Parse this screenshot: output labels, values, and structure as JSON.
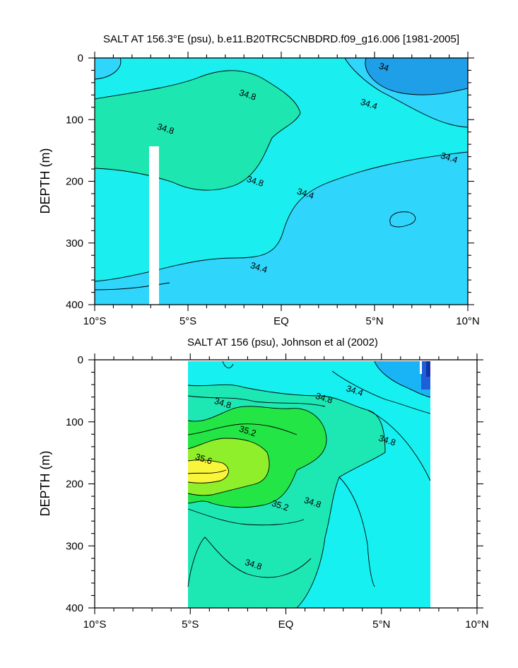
{
  "chart_data": [
    {
      "type": "contour",
      "title": "SALT AT 156.3°E (psu), b.e11.B20TRC5CNBDRD.f09_g16.006 [1981-2005]",
      "ylabel": "DEPTH (m)",
      "xlabel": "",
      "x_ticks": [
        "10°S",
        "5°S",
        "EQ",
        "5°N",
        "10°N"
      ],
      "x_range": [
        -10,
        10
      ],
      "y_ticks": [
        "0",
        "100",
        "200",
        "300",
        "400"
      ],
      "y_range": [
        0,
        400
      ],
      "y_reversed": true,
      "contour_labels": [
        {
          "text": "34",
          "x": 5.5,
          "y": 15
        },
        {
          "text": "34.4",
          "x": 4.7,
          "y": 75
        },
        {
          "text": "34.8",
          "x": -1.8,
          "y": 60
        },
        {
          "text": "34.8",
          "x": -6.2,
          "y": 115
        },
        {
          "text": "34.8",
          "x": -1.4,
          "y": 200
        },
        {
          "text": "34.4",
          "x": 9.0,
          "y": 162
        },
        {
          "text": "34.4",
          "x": 1.3,
          "y": 220
        },
        {
          "text": "34.4",
          "x": -1.2,
          "y": 340
        }
      ],
      "fill_colors": {
        "below_34": "#1f9fe8",
        "34_34.4": "#2fd5fa",
        "34.4_34.8": "#1aeeee",
        "34.8_35.2": "#1ee6b0"
      }
    },
    {
      "type": "contour",
      "title": "SALT AT 156 (psu), Johnson et al (2002)",
      "ylabel": "DEPTH (m)",
      "xlabel": "",
      "x_ticks": [
        "10°S",
        "5°S",
        "EQ",
        "5°N",
        "10°N"
      ],
      "x_range": [
        -10,
        10
      ],
      "y_ticks": [
        "0",
        "100",
        "200",
        "300",
        "400"
      ],
      "y_range": [
        0,
        400
      ],
      "y_reversed": true,
      "contour_labels": [
        {
          "text": "34.4",
          "x": 3.6,
          "y": 50
        },
        {
          "text": "34.8",
          "x": -3.3,
          "y": 70
        },
        {
          "text": "34.8",
          "x": 2.0,
          "y": 62
        },
        {
          "text": "35.2",
          "x": -2.0,
          "y": 115
        },
        {
          "text": "35.6",
          "x": -4.3,
          "y": 160
        },
        {
          "text": "35.2",
          "x": -0.3,
          "y": 235
        },
        {
          "text": "34.8",
          "x": 1.4,
          "y": 230
        },
        {
          "text": "34.8",
          "x": 5.3,
          "y": 130
        },
        {
          "text": "34.8",
          "x": -1.7,
          "y": 330
        }
      ],
      "fill_colors": {
        "below_34.4": "#18b4f5",
        "34.4_34.8": "#16f0f0",
        "34.8_35.2": "#1de8b4",
        "35.2_35.6": "#23e646",
        "35.6_36": "#8fef2a",
        "above_36": "#f8f53a"
      }
    }
  ]
}
